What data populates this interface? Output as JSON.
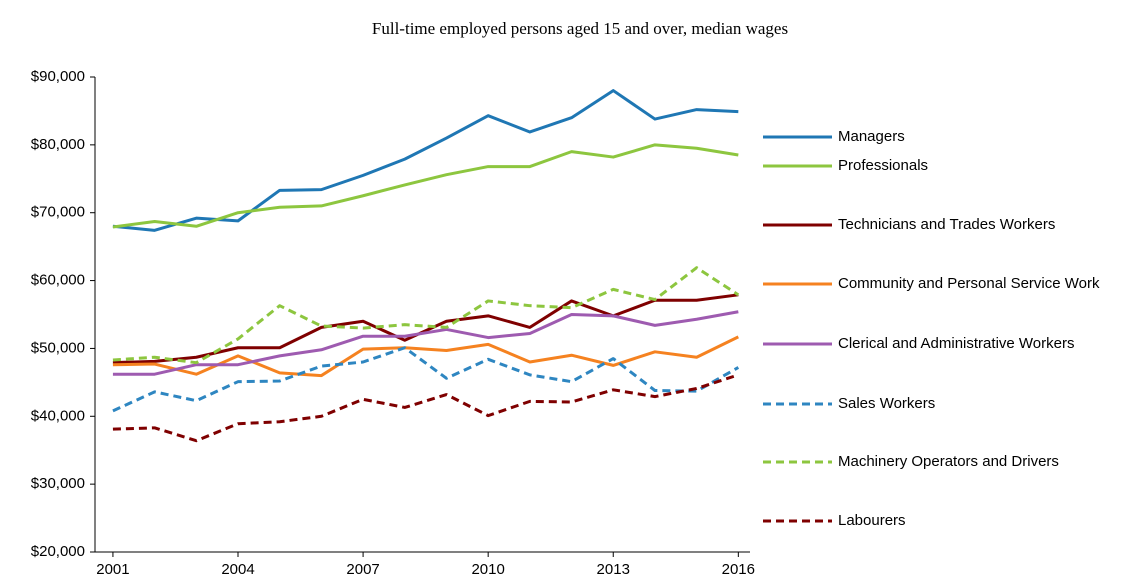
{
  "chart_data": {
    "type": "line",
    "title": "Full-time employed persons aged 15 and over, median wages",
    "x": [
      2001,
      2002,
      2003,
      2004,
      2005,
      2006,
      2007,
      2008,
      2009,
      2010,
      2011,
      2012,
      2013,
      2014,
      2015,
      2016
    ],
    "xlim": [
      2000.57,
      2016.28
    ],
    "xticks": [
      2001,
      2004,
      2007,
      2010,
      2013,
      2016
    ],
    "ylim": [
      20000,
      90000
    ],
    "yticks": [
      {
        "value": 20000,
        "label": "$20,000"
      },
      {
        "value": 30000,
        "label": "$30,000"
      },
      {
        "value": 40000,
        "label": "$40,000"
      },
      {
        "value": 50000,
        "label": "$50,000"
      },
      {
        "value": 60000,
        "label": "$60,000"
      },
      {
        "value": 70000,
        "label": "$70,000"
      },
      {
        "value": 80000,
        "label": "$80,000"
      },
      {
        "value": 90000,
        "label": "$90,000"
      }
    ],
    "grid": false,
    "legend": "right",
    "series": [
      {
        "name": "Managers",
        "color": "#1f77b4",
        "dashed": false,
        "values": [
          68000,
          67400,
          69200,
          68800,
          73300,
          73400,
          75500,
          77900,
          81000,
          84300,
          81900,
          84000,
          88000,
          83800,
          85200,
          84900
        ]
      },
      {
        "name": "Professionals",
        "color": "#8dc63f",
        "dashed": false,
        "values": [
          67900,
          68700,
          68000,
          70000,
          70800,
          71000,
          72500,
          74100,
          75600,
          76800,
          76800,
          79000,
          78200,
          80000,
          79500,
          78500
        ]
      },
      {
        "name": "Technicians and Trades Workers",
        "color": "#7f0000",
        "dashed": false,
        "values": [
          47900,
          48100,
          48700,
          50100,
          50100,
          53100,
          54000,
          51200,
          54000,
          54800,
          53100,
          57000,
          54800,
          57100,
          57100,
          57900
        ]
      },
      {
        "name": "Community and Personal Service Work",
        "color": "#f58220",
        "dashed": false,
        "values": [
          47600,
          47700,
          46200,
          48900,
          46400,
          46000,
          49900,
          50100,
          49700,
          50600,
          48000,
          49000,
          47500,
          49500,
          48700,
          51700
        ]
      },
      {
        "name": "Clerical and Administrative Workers",
        "color": "#9e5bb0",
        "dashed": false,
        "values": [
          46200,
          46200,
          47600,
          47600,
          48900,
          49800,
          51800,
          51800,
          52800,
          51600,
          52200,
          55000,
          54800,
          53400,
          54300,
          55400
        ]
      },
      {
        "name": "Sales Workers",
        "color": "#2e86c1",
        "dashed": true,
        "values": [
          40800,
          43600,
          42300,
          45100,
          45200,
          47400,
          48000,
          50100,
          45600,
          48400,
          46100,
          45100,
          48500,
          43800,
          43700,
          47200
        ]
      },
      {
        "name": "Machinery Operators and Drivers",
        "color": "#8dc63f",
        "dashed": true,
        "values": [
          48300,
          48700,
          47900,
          51400,
          56300,
          53300,
          53000,
          53500,
          53100,
          57000,
          56300,
          56000,
          58700,
          57200,
          61900,
          57900
        ]
      },
      {
        "name": "Labourers",
        "color": "#7f0000",
        "dashed": true,
        "values": [
          38100,
          38300,
          36400,
          38900,
          39200,
          40000,
          42500,
          41300,
          43200,
          40100,
          42200,
          42100,
          43900,
          42900,
          44100,
          46100
        ]
      }
    ]
  }
}
